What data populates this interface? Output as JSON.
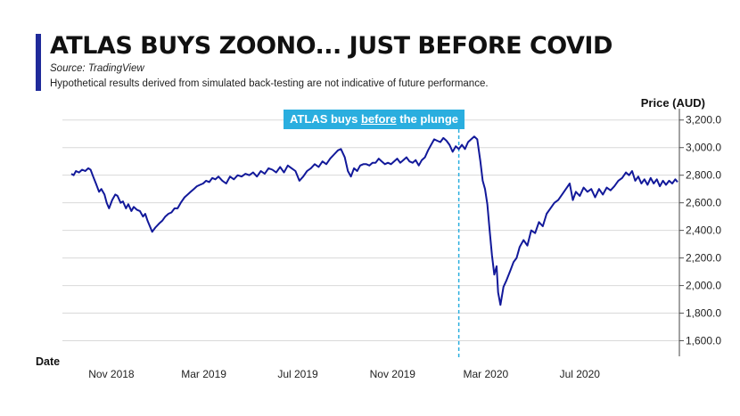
{
  "header": {
    "title": "ATLAS BUYS ZOONO... JUST BEFORE COVID",
    "source": "Source: TradingView",
    "disclaimer": "Hypothetical results derived from simulated back-testing are not indicative of future performance."
  },
  "annotation": {
    "prefix": "ATLAS buys ",
    "emphasis": "before",
    "suffix": " the plunge",
    "date": "2020-01-26"
  },
  "colors": {
    "line": "#12199a",
    "annotation_bg": "#2aaedf",
    "grid": "#d9d9d9",
    "title_accent": "#1f2a9a"
  },
  "chart_data": {
    "type": "line",
    "title": "ATLAS BUYS ZOONO... JUST BEFORE COVID",
    "xlabel": "Date",
    "ylabel": "Price (AUD)",
    "ylim": [
      1500,
      3250
    ],
    "xlim": [
      "2018-09-10",
      "2020-11-05"
    ],
    "grid": true,
    "y_ticks": [
      {
        "value": 1600,
        "label": "1,600.0"
      },
      {
        "value": 1800,
        "label": "1,800.0"
      },
      {
        "value": 2000,
        "label": "2,000.0"
      },
      {
        "value": 2200,
        "label": "2,200.0"
      },
      {
        "value": 2400,
        "label": "2,400.0"
      },
      {
        "value": 2600,
        "label": "2,600.0"
      },
      {
        "value": 2800,
        "label": "2,800.0"
      },
      {
        "value": 3000,
        "label": "3,000.0"
      },
      {
        "value": 3200,
        "label": "3,200.0"
      }
    ],
    "x_ticks": [
      {
        "date": "2018-11-01",
        "label": "Nov 2018"
      },
      {
        "date": "2019-03-01",
        "label": "Mar 2019"
      },
      {
        "date": "2019-07-01",
        "label": "Jul 2019"
      },
      {
        "date": "2019-11-01",
        "label": "Nov 2019"
      },
      {
        "date": "2020-03-01",
        "label": "Mar 2020"
      },
      {
        "date": "2020-07-01",
        "label": "Jul 2020"
      }
    ],
    "series": [
      {
        "name": "",
        "points": [
          [
            "2018-09-10",
            2810
          ],
          [
            "2018-09-13",
            2800
          ],
          [
            "2018-09-16",
            2830
          ],
          [
            "2018-09-20",
            2820
          ],
          [
            "2018-09-24",
            2840
          ],
          [
            "2018-09-28",
            2830
          ],
          [
            "2018-10-02",
            2850
          ],
          [
            "2018-10-05",
            2840
          ],
          [
            "2018-10-09",
            2780
          ],
          [
            "2018-10-12",
            2740
          ],
          [
            "2018-10-16",
            2680
          ],
          [
            "2018-10-19",
            2700
          ],
          [
            "2018-10-23",
            2660
          ],
          [
            "2018-10-26",
            2600
          ],
          [
            "2018-10-29",
            2560
          ],
          [
            "2018-11-02",
            2620
          ],
          [
            "2018-11-06",
            2660
          ],
          [
            "2018-11-09",
            2650
          ],
          [
            "2018-11-13",
            2600
          ],
          [
            "2018-11-16",
            2610
          ],
          [
            "2018-11-20",
            2560
          ],
          [
            "2018-11-23",
            2590
          ],
          [
            "2018-11-27",
            2540
          ],
          [
            "2018-11-30",
            2570
          ],
          [
            "2018-12-04",
            2550
          ],
          [
            "2018-12-08",
            2540
          ],
          [
            "2018-12-12",
            2500
          ],
          [
            "2018-12-15",
            2520
          ],
          [
            "2018-12-18",
            2470
          ],
          [
            "2018-12-21",
            2430
          ],
          [
            "2018-12-24",
            2390
          ],
          [
            "2018-12-28",
            2420
          ],
          [
            "2019-01-02",
            2450
          ],
          [
            "2019-01-06",
            2470
          ],
          [
            "2019-01-10",
            2500
          ],
          [
            "2019-01-14",
            2520
          ],
          [
            "2019-01-18",
            2530
          ],
          [
            "2019-01-22",
            2560
          ],
          [
            "2019-01-26",
            2560
          ],
          [
            "2019-01-30",
            2600
          ],
          [
            "2019-02-04",
            2640
          ],
          [
            "2019-02-08",
            2660
          ],
          [
            "2019-02-12",
            2680
          ],
          [
            "2019-02-16",
            2700
          ],
          [
            "2019-02-20",
            2720
          ],
          [
            "2019-02-24",
            2730
          ],
          [
            "2019-02-28",
            2740
          ],
          [
            "2019-03-04",
            2760
          ],
          [
            "2019-03-08",
            2750
          ],
          [
            "2019-03-12",
            2780
          ],
          [
            "2019-03-16",
            2770
          ],
          [
            "2019-03-20",
            2790
          ],
          [
            "2019-03-25",
            2760
          ],
          [
            "2019-03-30",
            2740
          ],
          [
            "2019-04-04",
            2790
          ],
          [
            "2019-04-09",
            2770
          ],
          [
            "2019-04-14",
            2800
          ],
          [
            "2019-04-19",
            2790
          ],
          [
            "2019-04-24",
            2810
          ],
          [
            "2019-04-29",
            2800
          ],
          [
            "2019-05-04",
            2820
          ],
          [
            "2019-05-09",
            2790
          ],
          [
            "2019-05-14",
            2830
          ],
          [
            "2019-05-19",
            2810
          ],
          [
            "2019-05-24",
            2850
          ],
          [
            "2019-05-29",
            2840
          ],
          [
            "2019-06-03",
            2820
          ],
          [
            "2019-06-08",
            2860
          ],
          [
            "2019-06-13",
            2820
          ],
          [
            "2019-06-18",
            2870
          ],
          [
            "2019-06-23",
            2850
          ],
          [
            "2019-06-28",
            2830
          ],
          [
            "2019-07-03",
            2760
          ],
          [
            "2019-07-08",
            2790
          ],
          [
            "2019-07-13",
            2830
          ],
          [
            "2019-07-18",
            2850
          ],
          [
            "2019-07-23",
            2880
          ],
          [
            "2019-07-28",
            2860
          ],
          [
            "2019-08-02",
            2900
          ],
          [
            "2019-08-07",
            2880
          ],
          [
            "2019-08-12",
            2920
          ],
          [
            "2019-08-17",
            2950
          ],
          [
            "2019-08-22",
            2980
          ],
          [
            "2019-08-26",
            2990
          ],
          [
            "2019-08-31",
            2930
          ],
          [
            "2019-09-04",
            2830
          ],
          [
            "2019-09-08",
            2790
          ],
          [
            "2019-09-12",
            2850
          ],
          [
            "2019-09-16",
            2830
          ],
          [
            "2019-09-20",
            2870
          ],
          [
            "2019-09-24",
            2880
          ],
          [
            "2019-09-28",
            2880
          ],
          [
            "2019-10-02",
            2870
          ],
          [
            "2019-10-06",
            2890
          ],
          [
            "2019-10-10",
            2890
          ],
          [
            "2019-10-14",
            2920
          ],
          [
            "2019-10-18",
            2900
          ],
          [
            "2019-10-22",
            2880
          ],
          [
            "2019-10-26",
            2890
          ],
          [
            "2019-10-30",
            2880
          ],
          [
            "2019-11-03",
            2900
          ],
          [
            "2019-11-07",
            2920
          ],
          [
            "2019-11-11",
            2890
          ],
          [
            "2019-11-15",
            2910
          ],
          [
            "2019-11-19",
            2930
          ],
          [
            "2019-11-23",
            2900
          ],
          [
            "2019-11-27",
            2890
          ],
          [
            "2019-12-01",
            2910
          ],
          [
            "2019-12-05",
            2870
          ],
          [
            "2019-12-09",
            2910
          ],
          [
            "2019-12-13",
            2930
          ],
          [
            "2019-12-17",
            2980
          ],
          [
            "2019-12-21",
            3020
          ],
          [
            "2019-12-25",
            3060
          ],
          [
            "2019-12-29",
            3050
          ],
          [
            "2020-01-02",
            3040
          ],
          [
            "2020-01-06",
            3070
          ],
          [
            "2020-01-10",
            3050
          ],
          [
            "2020-01-14",
            3020
          ],
          [
            "2020-01-18",
            2970
          ],
          [
            "2020-01-22",
            3010
          ],
          [
            "2020-01-26",
            2990
          ],
          [
            "2020-01-30",
            3020
          ],
          [
            "2020-02-03",
            2990
          ],
          [
            "2020-02-07",
            3040
          ],
          [
            "2020-02-11",
            3060
          ],
          [
            "2020-02-15",
            3080
          ],
          [
            "2020-02-19",
            3060
          ],
          [
            "2020-02-23",
            2900
          ],
          [
            "2020-02-26",
            2760
          ],
          [
            "2020-02-29",
            2700
          ],
          [
            "2020-03-03",
            2590
          ],
          [
            "2020-03-06",
            2400
          ],
          [
            "2020-03-09",
            2220
          ],
          [
            "2020-03-12",
            2080
          ],
          [
            "2020-03-15",
            2140
          ],
          [
            "2020-03-17",
            1950
          ],
          [
            "2020-03-20",
            1860
          ],
          [
            "2020-03-24",
            1990
          ],
          [
            "2020-03-28",
            2040
          ],
          [
            "2020-04-02",
            2110
          ],
          [
            "2020-04-06",
            2170
          ],
          [
            "2020-04-10",
            2200
          ],
          [
            "2020-04-14",
            2280
          ],
          [
            "2020-04-19",
            2330
          ],
          [
            "2020-04-24",
            2290
          ],
          [
            "2020-04-29",
            2400
          ],
          [
            "2020-05-04",
            2380
          ],
          [
            "2020-05-09",
            2460
          ],
          [
            "2020-05-14",
            2430
          ],
          [
            "2020-05-19",
            2520
          ],
          [
            "2020-05-24",
            2560
          ],
          [
            "2020-05-29",
            2600
          ],
          [
            "2020-06-03",
            2620
          ],
          [
            "2020-06-08",
            2660
          ],
          [
            "2020-06-13",
            2700
          ],
          [
            "2020-06-18",
            2740
          ],
          [
            "2020-06-22",
            2620
          ],
          [
            "2020-06-26",
            2680
          ],
          [
            "2020-07-01",
            2650
          ],
          [
            "2020-07-06",
            2710
          ],
          [
            "2020-07-11",
            2680
          ],
          [
            "2020-07-16",
            2700
          ],
          [
            "2020-07-21",
            2640
          ],
          [
            "2020-07-26",
            2700
          ],
          [
            "2020-07-31",
            2660
          ],
          [
            "2020-08-05",
            2710
          ],
          [
            "2020-08-10",
            2690
          ],
          [
            "2020-08-15",
            2720
          ],
          [
            "2020-08-20",
            2760
          ],
          [
            "2020-08-25",
            2780
          ],
          [
            "2020-08-30",
            2820
          ],
          [
            "2020-09-03",
            2800
          ],
          [
            "2020-09-07",
            2830
          ],
          [
            "2020-09-11",
            2760
          ],
          [
            "2020-09-15",
            2790
          ],
          [
            "2020-09-19",
            2740
          ],
          [
            "2020-09-23",
            2770
          ],
          [
            "2020-09-27",
            2730
          ],
          [
            "2020-10-01",
            2780
          ],
          [
            "2020-10-05",
            2740
          ],
          [
            "2020-10-09",
            2770
          ],
          [
            "2020-10-13",
            2720
          ],
          [
            "2020-10-17",
            2760
          ],
          [
            "2020-10-21",
            2730
          ],
          [
            "2020-10-25",
            2760
          ],
          [
            "2020-10-29",
            2740
          ],
          [
            "2020-11-02",
            2770
          ],
          [
            "2020-11-05",
            2750
          ]
        ]
      }
    ]
  }
}
